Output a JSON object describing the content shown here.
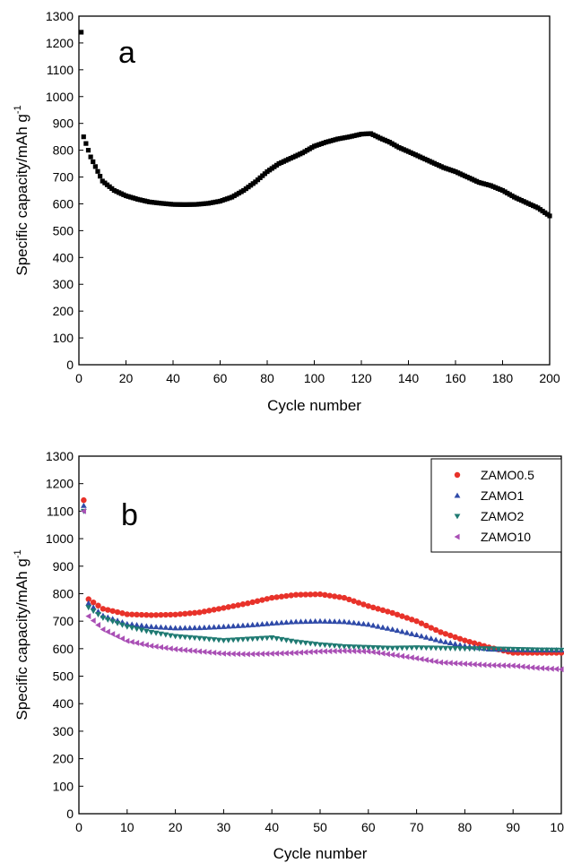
{
  "chart_data": [
    {
      "type": "scatter",
      "panel_label": "a",
      "xlabel": "Cycle number",
      "ylabel": "Specific capacity/mAh g",
      "ylabel_superscript": "-1",
      "xlim": [
        0,
        200
      ],
      "ylim": [
        0,
        1300
      ],
      "xticks": [
        "0",
        "20",
        "40",
        "60",
        "80",
        "100",
        "120",
        "140",
        "160",
        "180",
        "200"
      ],
      "yticks": [
        "0",
        "100",
        "200",
        "300",
        "400",
        "500",
        "600",
        "700",
        "800",
        "900",
        "1000",
        "1100",
        "1200",
        "1300"
      ],
      "grid": false,
      "series": [
        {
          "marker": "square",
          "color": "#000000",
          "x": [
            1,
            2,
            5,
            10,
            15,
            20,
            25,
            30,
            35,
            40,
            45,
            50,
            55,
            60,
            65,
            70,
            75,
            80,
            85,
            90,
            95,
            100,
            105,
            110,
            115,
            120,
            124,
            128,
            132,
            136,
            140,
            145,
            150,
            155,
            160,
            165,
            170,
            175,
            180,
            185,
            190,
            195,
            200
          ],
          "y": [
            1240,
            850,
            775,
            685,
            650,
            630,
            617,
            607,
            602,
            598,
            597,
            598,
            602,
            610,
            625,
            650,
            682,
            720,
            750,
            770,
            790,
            815,
            830,
            842,
            850,
            860,
            862,
            845,
            830,
            810,
            795,
            775,
            755,
            735,
            720,
            700,
            680,
            668,
            650,
            625,
            605,
            585,
            555
          ]
        }
      ]
    },
    {
      "type": "scatter",
      "panel_label": "b",
      "xlabel": "Cycle number",
      "ylabel": "Specific capacity/mAh g",
      "ylabel_superscript": "-1",
      "xlim": [
        0,
        100
      ],
      "ylim": [
        0,
        1300
      ],
      "xticks": [
        "0",
        "10",
        "20",
        "30",
        "40",
        "50",
        "60",
        "70",
        "80",
        "90",
        "10"
      ],
      "yticks": [
        "0",
        "100",
        "200",
        "300",
        "400",
        "500",
        "600",
        "700",
        "800",
        "900",
        "1000",
        "1100",
        "1200",
        "1300"
      ],
      "grid": false,
      "legend_position": "top-right",
      "series": [
        {
          "name": "ZAMO0.5",
          "marker": "circle",
          "color": "#e8322a",
          "x": [
            1,
            2,
            5,
            10,
            15,
            20,
            25,
            30,
            35,
            40,
            45,
            50,
            55,
            60,
            65,
            70,
            75,
            80,
            85,
            90,
            95,
            100
          ],
          "y": [
            1140,
            780,
            745,
            725,
            722,
            724,
            732,
            748,
            765,
            785,
            796,
            798,
            785,
            755,
            730,
            700,
            660,
            630,
            605,
            585,
            585,
            585
          ]
        },
        {
          "name": "ZAMO1",
          "marker": "triangle-up",
          "color": "#2f4aa8",
          "x": [
            1,
            2,
            5,
            10,
            15,
            20,
            25,
            30,
            35,
            40,
            45,
            50,
            55,
            60,
            65,
            70,
            75,
            80,
            85,
            90,
            95,
            100
          ],
          "y": [
            1120,
            765,
            720,
            690,
            680,
            675,
            676,
            680,
            685,
            692,
            698,
            700,
            698,
            688,
            670,
            650,
            628,
            610,
            598,
            596,
            595,
            595
          ]
        },
        {
          "name": "ZAMO2",
          "marker": "triangle-down",
          "color": "#1f7a72",
          "x": [
            1,
            2,
            5,
            10,
            15,
            20,
            25,
            30,
            35,
            40,
            45,
            50,
            55,
            60,
            65,
            70,
            75,
            80,
            85,
            90,
            95,
            100
          ],
          "y": [
            1100,
            750,
            712,
            680,
            660,
            645,
            638,
            630,
            635,
            640,
            625,
            615,
            608,
            605,
            602,
            604,
            602,
            600,
            600,
            598,
            596,
            595
          ]
        },
        {
          "name": "ZAMO10",
          "marker": "triangle-left",
          "color": "#a94fb5",
          "x": [
            1,
            2,
            5,
            10,
            15,
            20,
            25,
            30,
            35,
            40,
            45,
            50,
            55,
            60,
            65,
            70,
            75,
            80,
            85,
            90,
            95,
            100
          ],
          "y": [
            1100,
            718,
            670,
            628,
            610,
            598,
            590,
            582,
            580,
            582,
            585,
            590,
            592,
            590,
            578,
            565,
            550,
            545,
            540,
            538,
            530,
            525
          ]
        }
      ]
    }
  ]
}
